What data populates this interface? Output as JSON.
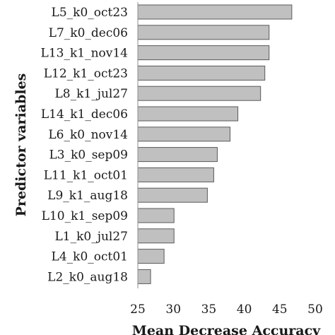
{
  "chart_data": {
    "type": "bar",
    "orientation": "horizontal",
    "categories": [
      "L5_k0_oct23",
      "L7_k0_dec06",
      "L13_k1_nov14",
      "L12_k1_oct23",
      "L8_k1_jul27",
      "L14_k1_dec06",
      "L6_k0_nov14",
      "L3_k0_sep09",
      "L11_k1_oct01",
      "L9_k1_aug18",
      "L10_k1_sep09",
      "L1_k0_jul27",
      "L4_k0_oct01",
      "L2_k0_aug18"
    ],
    "values": [
      46.7,
      43.5,
      43.5,
      42.9,
      42.3,
      39.1,
      38.0,
      36.2,
      35.7,
      34.8,
      30.1,
      30.1,
      28.7,
      26.8
    ],
    "xlabel": "Mean Decrease Accuracy",
    "ylabel": "Predictor variables",
    "xlim": [
      25,
      50
    ],
    "xticks": [
      "25",
      "30",
      "35",
      "40",
      "45",
      "50"
    ],
    "grid": false,
    "legend": "none",
    "bar_color": "#c0c0c0",
    "bar_edge_color": "#5a5a5a"
  }
}
